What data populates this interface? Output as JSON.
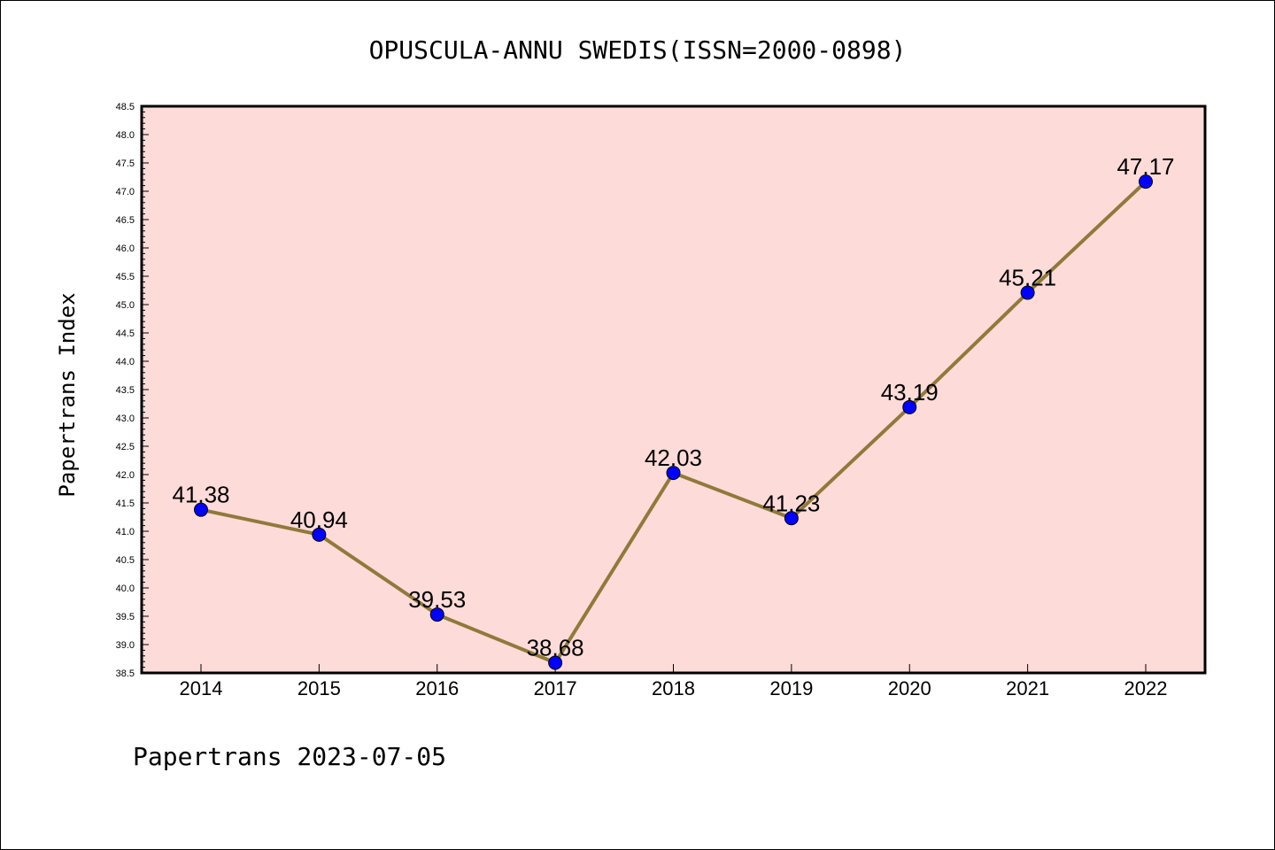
{
  "chart_data": {
    "type": "line",
    "title": "OPUSCULA-ANNU SWEDIS(ISSN=2000-0898)",
    "ylabel": "Papertrans Index",
    "xlabel": "",
    "footer": "Papertrans 2023-07-05",
    "categories": [
      "2014",
      "2015",
      "2016",
      "2017",
      "2018",
      "2019",
      "2020",
      "2021",
      "2022"
    ],
    "values": [
      41.38,
      40.94,
      39.53,
      38.68,
      42.03,
      41.23,
      43.19,
      45.21,
      47.17
    ],
    "data_labels": [
      "41.38",
      "40.94",
      "39.53",
      "38.68",
      "42.03",
      "41.23",
      "43.19",
      "45.21",
      "47.17"
    ],
    "ylim": [
      38.5,
      48.5
    ],
    "yticks": [
      "38.5",
      "39.0",
      "39.5",
      "40.0",
      "40.5",
      "41.0",
      "41.5",
      "42.0",
      "42.5",
      "43.0",
      "43.5",
      "44.0",
      "44.5",
      "45.0",
      "45.5",
      "46.0",
      "46.5",
      "47.0",
      "47.5",
      "48.0",
      "48.5"
    ],
    "grid": false,
    "colors": {
      "plot_background": "#fddbd9",
      "line": "#8f7a3a",
      "marker": "#0000ff"
    }
  }
}
